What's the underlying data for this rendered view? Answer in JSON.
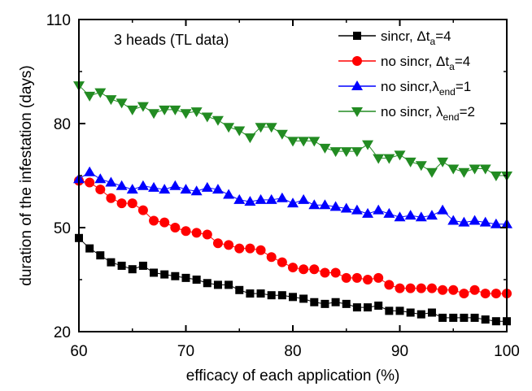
{
  "chart_data": {
    "type": "line",
    "title": "",
    "annotation": "3 heads (TL data)",
    "xlabel": "efficacy of each application (%)",
    "ylabel": "duration of the infestation (days)",
    "xlim": [
      60,
      100
    ],
    "ylim": [
      20,
      110
    ],
    "xticks": [
      "60",
      "70",
      "80",
      "90",
      "100"
    ],
    "yticks": [
      "20",
      "50",
      "80",
      "110"
    ],
    "grid": false,
    "legend_position": "top-right",
    "x": [
      60,
      61,
      62,
      63,
      64,
      65,
      66,
      67,
      68,
      69,
      70,
      71,
      72,
      73,
      74,
      75,
      76,
      77,
      78,
      79,
      80,
      81,
      82,
      83,
      84,
      85,
      86,
      87,
      88,
      89,
      90,
      91,
      92,
      93,
      94,
      95,
      96,
      97,
      98,
      99,
      100
    ],
    "series": [
      {
        "name_parts": [
          "sincr, ",
          "Δt",
          "a",
          "=4"
        ],
        "color": "#000000",
        "marker": "square",
        "values": [
          47,
          44,
          42,
          40,
          39,
          38,
          39,
          37,
          36.5,
          36,
          35.5,
          35,
          34,
          33.5,
          33.5,
          32,
          31,
          31,
          30.5,
          30.5,
          30,
          29.5,
          28.5,
          28,
          28.5,
          28,
          27,
          27,
          27.5,
          26,
          26,
          25.5,
          25,
          25.5,
          24,
          24,
          24,
          24,
          23.5,
          23,
          23
        ]
      },
      {
        "name_parts": [
          "no sincr, ",
          "Δt",
          "a",
          "=4"
        ],
        "color": "#ff0000",
        "marker": "circle",
        "values": [
          63.5,
          63,
          61,
          58.5,
          57,
          57,
          55,
          52,
          51.5,
          50,
          49,
          48.5,
          48,
          45.5,
          45,
          44,
          44,
          43.5,
          41.5,
          40,
          38.5,
          38,
          38,
          37,
          37,
          35.5,
          35.5,
          35,
          35.5,
          33.5,
          32.5,
          32.5,
          32.5,
          32.5,
          32,
          32,
          31,
          32,
          31,
          31,
          31
        ]
      },
      {
        "name_parts": [
          "no sincr,",
          "λ",
          "end",
          "=1"
        ],
        "color": "#0000ff",
        "marker": "triangle-up",
        "values": [
          64,
          66,
          64,
          63,
          62,
          61,
          62,
          61.5,
          61,
          62,
          61,
          60.5,
          61.5,
          61,
          59.5,
          58,
          57.5,
          58,
          58,
          58.5,
          57,
          58,
          56.5,
          56.5,
          56,
          55.5,
          55,
          54,
          55,
          54,
          53,
          53.5,
          53,
          53.5,
          55,
          52,
          51.5,
          52,
          51.5,
          51,
          51
        ]
      },
      {
        "name_parts": [
          "no sincr,  ",
          "λ",
          "end",
          "=2"
        ],
        "color": "#228b22",
        "marker": "triangle-down",
        "values": [
          91,
          88,
          89,
          87,
          86,
          84,
          85,
          83,
          84,
          84,
          83,
          83.5,
          82,
          81,
          79,
          78,
          76,
          79,
          79,
          77,
          75,
          75,
          75,
          73,
          72,
          72,
          72,
          74,
          70,
          70,
          71,
          69,
          68,
          66,
          69,
          67,
          66,
          67,
          67,
          65,
          65
        ]
      }
    ]
  }
}
